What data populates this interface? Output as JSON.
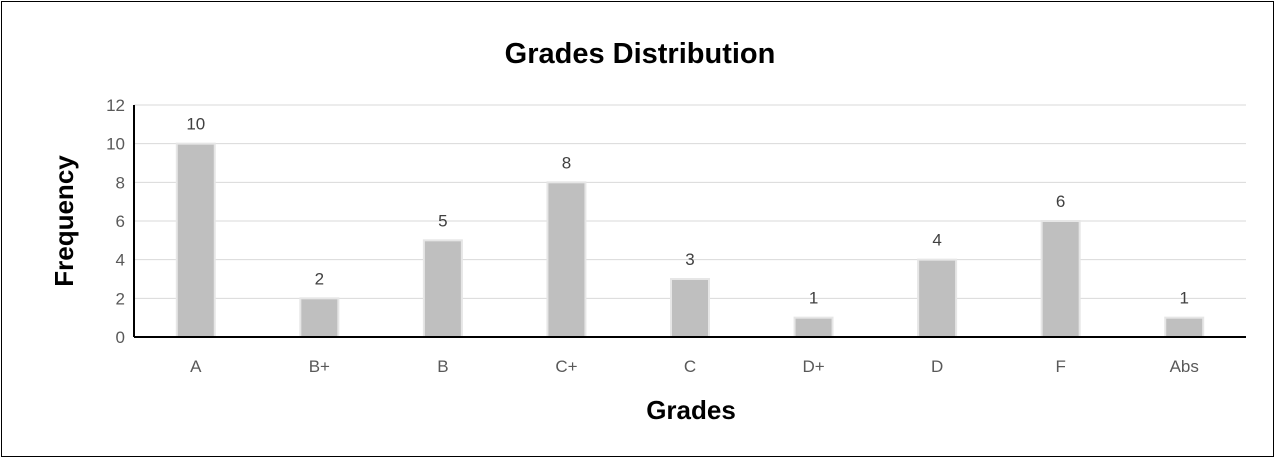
{
  "colors": {
    "bar_fill": "#bfbfbf",
    "bar_stroke": "#e6e6e6",
    "gridline": "#d9d9d9",
    "axis_line": "#000000",
    "frame": "#000000"
  },
  "chart_data": {
    "type": "bar",
    "title": "Grades Distribution",
    "xlabel": "Grades",
    "ylabel": "Frequency",
    "categories": [
      "A",
      "B+",
      "B",
      "C+",
      "C",
      "D+",
      "D",
      "F",
      "Abs"
    ],
    "values": [
      10,
      2,
      5,
      8,
      3,
      1,
      4,
      6,
      1
    ],
    "ylim": [
      0,
      12
    ],
    "yticks": [
      0,
      2,
      4,
      6,
      8,
      10,
      12
    ],
    "grid": true,
    "data_labels": true,
    "legend": "none"
  }
}
